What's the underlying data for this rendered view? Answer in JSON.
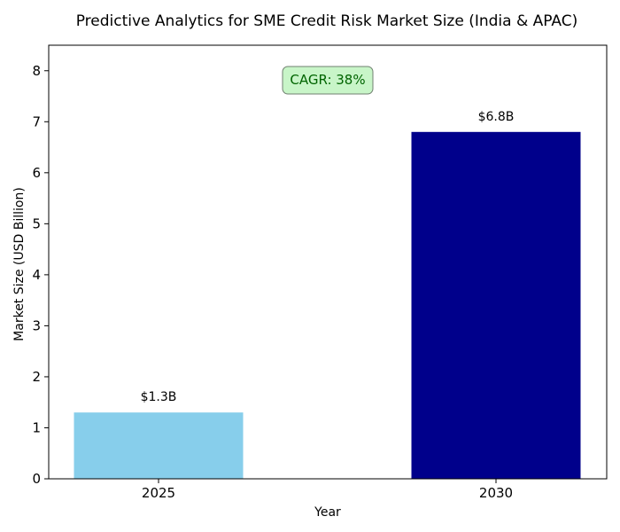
{
  "chart_data": {
    "type": "bar",
    "title": "Predictive Analytics for SME Credit Risk Market Size (India & APAC)",
    "xlabel": "Year",
    "ylabel": "Market Size (USD Billion)",
    "categories": [
      "2025",
      "2030"
    ],
    "values": [
      1.3,
      6.8
    ],
    "data_labels": [
      "$1.3B",
      "$6.8B"
    ],
    "bar_colors": [
      "#87CEEB",
      "#00008B"
    ],
    "ylim": [
      0,
      8.5
    ],
    "yticks": [
      "0",
      "1",
      "2",
      "3",
      "4",
      "5",
      "6",
      "7",
      "8"
    ],
    "grid": false,
    "annotation": {
      "text": "CAGR: 38%",
      "background_color": "#C8F5C8",
      "border_color": "#708070",
      "text_color": "#006400"
    }
  }
}
